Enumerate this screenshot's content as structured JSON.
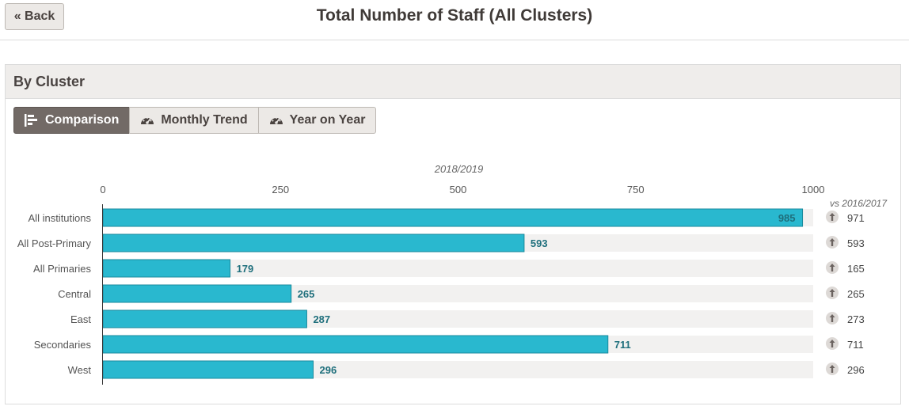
{
  "header": {
    "back_label": "« Back",
    "title": "Total Number of Staff (All Clusters)"
  },
  "panel": {
    "title": "By Cluster",
    "tabs": [
      {
        "label": "Comparison",
        "icon": "bar-chart-icon",
        "active": true
      },
      {
        "label": "Monthly Trend",
        "icon": "dashboard-icon",
        "active": false
      },
      {
        "label": "Year on Year",
        "icon": "dashboard-icon",
        "active": false
      }
    ]
  },
  "colors": {
    "bar": "#29b8cf",
    "bar_border": "#1a8a9c",
    "track": "#f2f1f0",
    "value_text": "#1f6f7c",
    "active_tab": "#726a66"
  },
  "chart_data": {
    "type": "bar",
    "orientation": "horizontal",
    "title": "2018/2019",
    "categories": [
      "All institutions",
      "All Post-Primary",
      "All Primaries",
      "Central",
      "East",
      "Secondaries",
      "West"
    ],
    "values": [
      985,
      593,
      179,
      265,
      287,
      711,
      296
    ],
    "xlim": [
      0,
      1000
    ],
    "ticks": [
      0,
      250,
      500,
      750,
      1000
    ],
    "comparison": {
      "label": "vs 2016/2017",
      "values": [
        971,
        593,
        165,
        265,
        273,
        711,
        296
      ],
      "icon": "arrow-up-icon"
    }
  }
}
